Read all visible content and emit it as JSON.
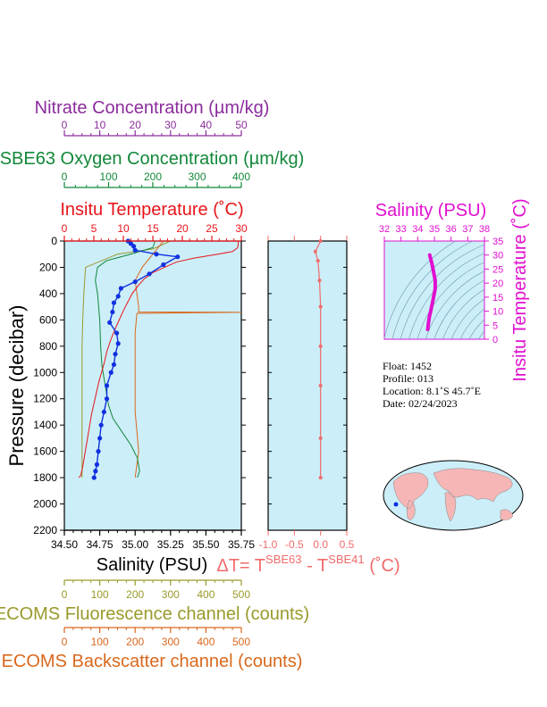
{
  "main_axes": {
    "nitrate": {
      "title": "Nitrate Concentration (µm/kg)",
      "ticks": [
        "0",
        "10",
        "20",
        "30",
        "40",
        "50"
      ],
      "range": [
        0,
        50
      ],
      "color": "#8b2d9c"
    },
    "oxygen": {
      "title": "SBE63 Oxygen Concentration (µm/kg)",
      "ticks": [
        "0",
        "100",
        "200",
        "300",
        "400"
      ],
      "range": [
        0,
        400
      ],
      "color": "#12883a"
    },
    "temperature": {
      "title": "Insitu Temperature (˚C)",
      "ticks": [
        "0",
        "5",
        "10",
        "15",
        "20",
        "25",
        "30"
      ],
      "range": [
        0,
        30
      ],
      "color": "#e8151b"
    },
    "salinity": {
      "title": "Salinity (PSU)",
      "ticks": [
        "34.50",
        "34.75",
        "35.00",
        "35.25",
        "35.50",
        "35.75"
      ],
      "range": [
        34.5,
        35.75
      ],
      "color": "#000000"
    },
    "fluorescence": {
      "title": "ECOMS Fluorescence channel (counts)",
      "ticks": [
        "0",
        "100",
        "200",
        "300",
        "400",
        "500"
      ],
      "range": [
        0,
        500
      ],
      "color": "#9a9a2c"
    },
    "backscatter": {
      "title": "ECOMS Backscatter channel (counts)",
      "ticks": [
        "0",
        "100",
        "200",
        "300",
        "400",
        "500"
      ],
      "range": [
        0,
        500
      ],
      "color": "#d9681c"
    },
    "pressure": {
      "title": "Pressure (decibar)",
      "ticks": [
        "0",
        "200",
        "400",
        "600",
        "800",
        "1000",
        "1200",
        "1400",
        "1600",
        "1800",
        "2000",
        "2200"
      ],
      "range": [
        0,
        2200
      ]
    }
  },
  "delta_axis": {
    "title_prefix": "ΔT= T",
    "sup1": "SBE63",
    "mid": " - T",
    "sup2": "SBE41",
    "unit": " (˚C)",
    "ticks": [
      "-1.0",
      "-0.5",
      "0.0",
      "0.5"
    ],
    "range": [
      -1.0,
      0.5
    ],
    "color": "#f06b6b"
  },
  "ts_plot": {
    "title": "Salinity (PSU)",
    "xticks": [
      "32",
      "33",
      "34",
      "35",
      "36",
      "37",
      "38"
    ],
    "yticks": [
      "0",
      "5",
      "10",
      "15",
      "20",
      "25",
      "30",
      "35"
    ],
    "xrange": [
      32,
      38
    ],
    "yrange": [
      0,
      35
    ],
    "ylabel": "Insitu Temperature (˚C)",
    "color": "#e010d0",
    "points": [
      [
        34.72,
        30
      ],
      [
        34.85,
        27
      ],
      [
        34.95,
        24
      ],
      [
        35.05,
        21
      ],
      [
        35.05,
        18
      ],
      [
        34.95,
        15
      ],
      [
        34.85,
        12
      ],
      [
        34.78,
        10
      ],
      [
        34.7,
        8
      ],
      [
        34.65,
        6
      ],
      [
        34.62,
        4.5
      ],
      [
        34.6,
        3.5
      ]
    ]
  },
  "info": {
    "float": "Float:  1452",
    "profile": "Profile:  013",
    "location": "Location:  8.1˚S  45.7˚E",
    "date": "Date:  02/24/2023"
  },
  "chart_data": {
    "type": "line",
    "y_axis": "Pressure (decibar)",
    "series": [
      {
        "name": "Insitu Temperature (˚C)",
        "x": [
          29.5,
          29.4,
          28.5,
          26,
          22,
          19,
          17,
          15,
          13.5,
          12.5,
          11.5,
          10.8,
          10,
          9.3,
          8.5,
          7.8,
          7.2,
          6.8,
          6.3,
          5.8,
          5.4,
          5.0,
          4.6,
          4.3,
          4.0,
          3.7,
          3.4,
          3.1,
          2.8,
          2.5
        ],
        "y": [
          0,
          50,
          80,
          100,
          130,
          160,
          200,
          240,
          290,
          340,
          400,
          460,
          530,
          600,
          680,
          760,
          840,
          920,
          1000,
          1080,
          1160,
          1240,
          1320,
          1400,
          1480,
          1560,
          1640,
          1720,
          1780,
          1800
        ]
      },
      {
        "name": "Salinity (PSU)",
        "x": [
          34.95,
          34.97,
          34.99,
          35.0,
          35.15,
          35.3,
          35.2,
          35.1,
          35.0,
          34.9,
          34.88,
          34.85,
          34.84,
          34.82,
          34.87,
          34.88,
          34.86,
          34.85,
          34.83,
          34.8,
          34.8,
          34.78,
          34.76,
          34.75,
          34.74,
          34.73,
          34.72,
          34.71
        ],
        "y": [
          0,
          20,
          40,
          70,
          100,
          120,
          180,
          250,
          310,
          360,
          420,
          470,
          540,
          620,
          700,
          780,
          860,
          940,
          1000,
          1100,
          1200,
          1300,
          1400,
          1500,
          1600,
          1700,
          1750,
          1800
        ]
      },
      {
        "name": "SBE63 Oxygen Concentration (µm/kg)",
        "x": [
          205,
          200,
          150,
          95,
          75,
          70,
          75,
          80,
          82,
          85,
          90,
          95,
          100,
          110,
          130,
          150,
          165,
          170,
          165
        ],
        "y": [
          0,
          50,
          100,
          150,
          200,
          300,
          400,
          600,
          800,
          950,
          1050,
          1150,
          1250,
          1350,
          1450,
          1550,
          1650,
          1750,
          1800
        ]
      },
      {
        "name": "ECOMS Fluorescence channel (counts)",
        "x": [
          300,
          250,
          150,
          60,
          55,
          52,
          50,
          50,
          50,
          50,
          50,
          50
        ],
        "y": [
          0,
          60,
          100,
          200,
          400,
          600,
          800,
          1000,
          1200,
          1400,
          1600,
          1800
        ]
      },
      {
        "name": "ECOMS Backscatter channel (counts)",
        "x": [
          280,
          250,
          220,
          200,
          205,
          210,
          210,
          500,
          205,
          200,
          200,
          200,
          210,
          200
        ],
        "y": [
          0,
          100,
          200,
          300,
          400,
          500,
          540,
          542,
          550,
          700,
          1000,
          1300,
          1600,
          1800
        ]
      },
      {
        "name": "Nitrate Concentration (µm/kg)",
        "x": [],
        "y": []
      },
      {
        "name": "ΔT",
        "x": [
          0.0,
          -0.1,
          -0.05,
          -0.02,
          0.0,
          0.0,
          0.0,
          0.0,
          0.0
        ],
        "y": [
          0,
          80,
          150,
          300,
          500,
          800,
          1100,
          1500,
          1800
        ]
      }
    ]
  }
}
